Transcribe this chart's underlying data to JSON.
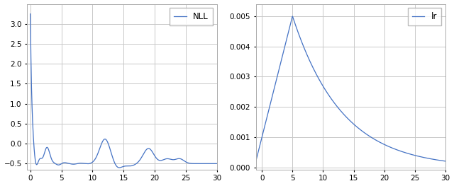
{
  "line_color": "#4472C4",
  "bg_color": "#ffffff",
  "grid_color": "#c8c8c8",
  "nll_label": "NLL",
  "lr_label": "lr",
  "nll_xlim": [
    -0.5,
    30
  ],
  "nll_ylim": [
    -0.65,
    3.5
  ],
  "lr_xlim": [
    -1,
    30
  ],
  "lr_ylim": [
    -6.5e-05,
    0.0054
  ],
  "nll_yticks": [
    -0.5,
    0.0,
    0.5,
    1.0,
    1.5,
    2.0,
    2.5,
    3.0
  ],
  "lr_yticks": [
    0.0,
    0.001,
    0.002,
    0.003,
    0.004,
    0.005
  ],
  "nll_xticks": [
    0,
    5,
    10,
    15,
    20,
    25,
    30
  ],
  "lr_xticks": [
    0,
    5,
    10,
    15,
    20,
    25,
    30
  ]
}
